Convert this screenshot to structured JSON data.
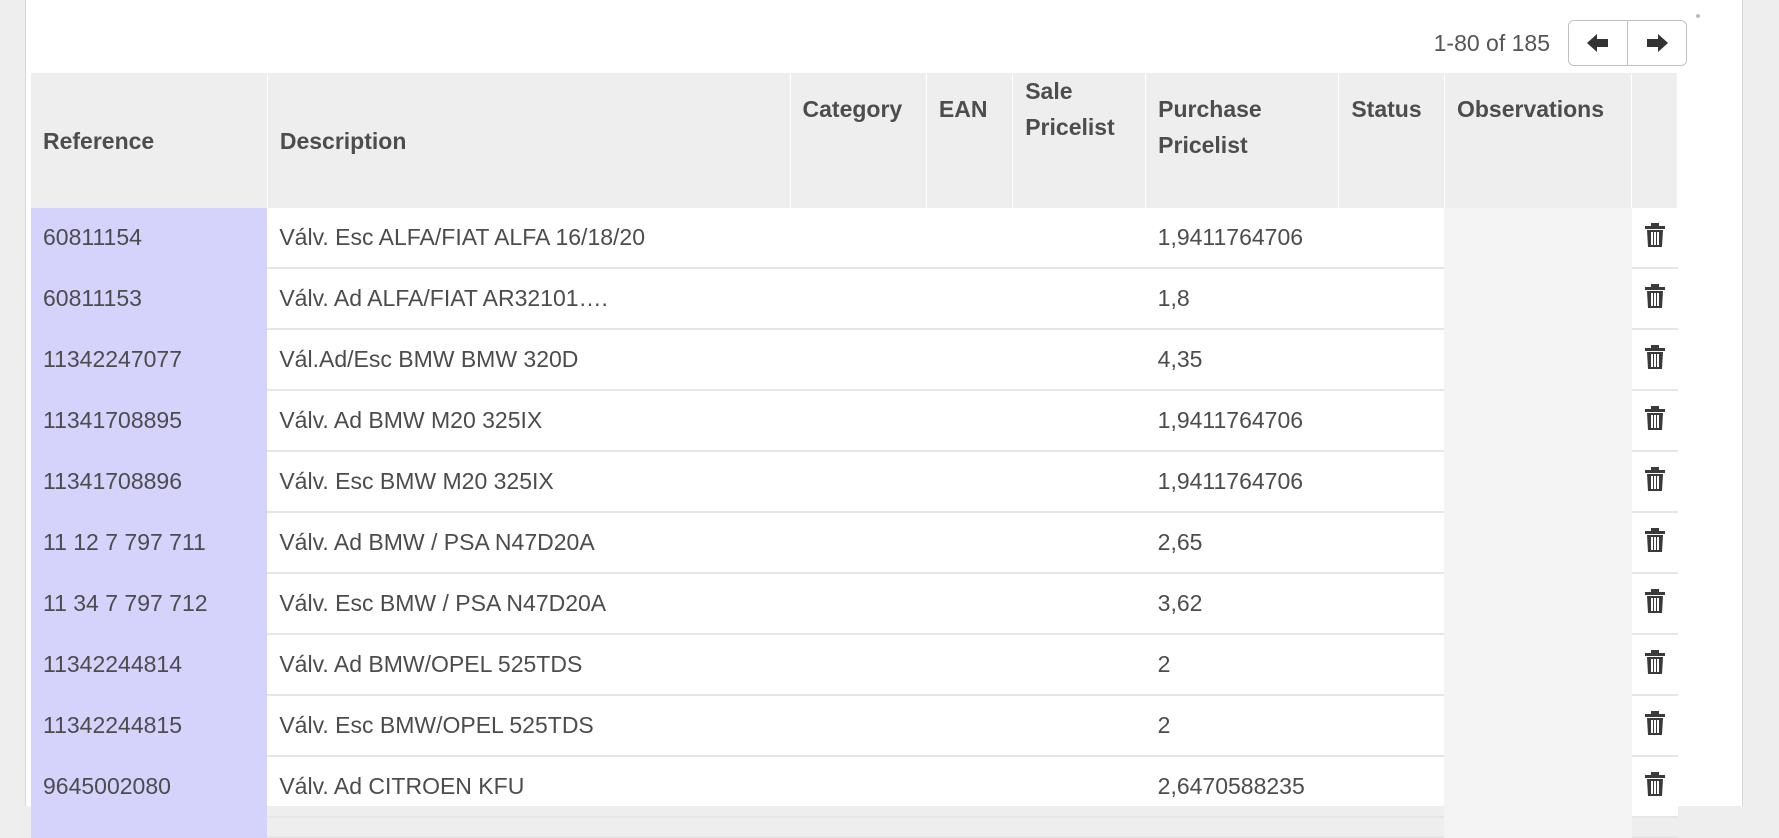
{
  "pager": {
    "value": "1-80 of 185",
    "prev_icon": "arrow-left-icon",
    "next_icon": "arrow-right-icon"
  },
  "columns": {
    "reference": "Reference",
    "description": "Description",
    "category": "Category",
    "ean": "EAN",
    "sale_pricelist": "Sale Pricelist",
    "purchase_pricelist": "Purchase Pricelist",
    "status": "Status",
    "observations": "Observations"
  },
  "rows": [
    {
      "reference": "60811154",
      "description": "Válv. Esc ALFA/FIAT ALFA 16/18/20",
      "category": "",
      "ean": "",
      "sale_pricelist": "",
      "purchase_pricelist": "1,9411764706",
      "status": "",
      "observations": ""
    },
    {
      "reference": "60811153",
      "description": "Válv. Ad ALFA/FIAT AR32101….",
      "category": "",
      "ean": "",
      "sale_pricelist": "",
      "purchase_pricelist": "1,8",
      "status": "",
      "observations": ""
    },
    {
      "reference": "11342247077",
      "description": "Vál.Ad/Esc BMW BMW 320D",
      "category": "",
      "ean": "",
      "sale_pricelist": "",
      "purchase_pricelist": "4,35",
      "status": "",
      "observations": ""
    },
    {
      "reference": "11341708895",
      "description": "Válv. Ad BMW M20 325IX",
      "category": "",
      "ean": "",
      "sale_pricelist": "",
      "purchase_pricelist": "1,9411764706",
      "status": "",
      "observations": ""
    },
    {
      "reference": "11341708896",
      "description": "Válv. Esc BMW M20 325IX",
      "category": "",
      "ean": "",
      "sale_pricelist": "",
      "purchase_pricelist": "1,9411764706",
      "status": "",
      "observations": ""
    },
    {
      "reference": "11 12 7 797 711",
      "description": "Válv. Ad BMW / PSA N47D20A",
      "category": "",
      "ean": "",
      "sale_pricelist": "",
      "purchase_pricelist": "2,65",
      "status": "",
      "observations": ""
    },
    {
      "reference": "11 34 7 797 712",
      "description": "Válv. Esc BMW / PSA N47D20A",
      "category": "",
      "ean": "",
      "sale_pricelist": "",
      "purchase_pricelist": "3,62",
      "status": "",
      "observations": ""
    },
    {
      "reference": "11342244814",
      "description": "Válv. Ad BMW/OPEL 525TDS",
      "category": "",
      "ean": "",
      "sale_pricelist": "",
      "purchase_pricelist": "2",
      "status": "",
      "observations": ""
    },
    {
      "reference": "11342244815",
      "description": "Válv. Esc BMW/OPEL 525TDS",
      "category": "",
      "ean": "",
      "sale_pricelist": "",
      "purchase_pricelist": "2",
      "status": "",
      "observations": ""
    },
    {
      "reference": "9645002080",
      "description": "Válv. Ad CITROEN KFU",
      "category": "",
      "ean": "",
      "sale_pricelist": "",
      "purchase_pricelist": "2,6470588235",
      "status": "",
      "observations": ""
    }
  ],
  "row_action_icon": "trash-icon",
  "colors": {
    "reference_column": "#d5d2fc",
    "observations_column": "#f4f4f4",
    "header_bg": "#eeeeee"
  }
}
